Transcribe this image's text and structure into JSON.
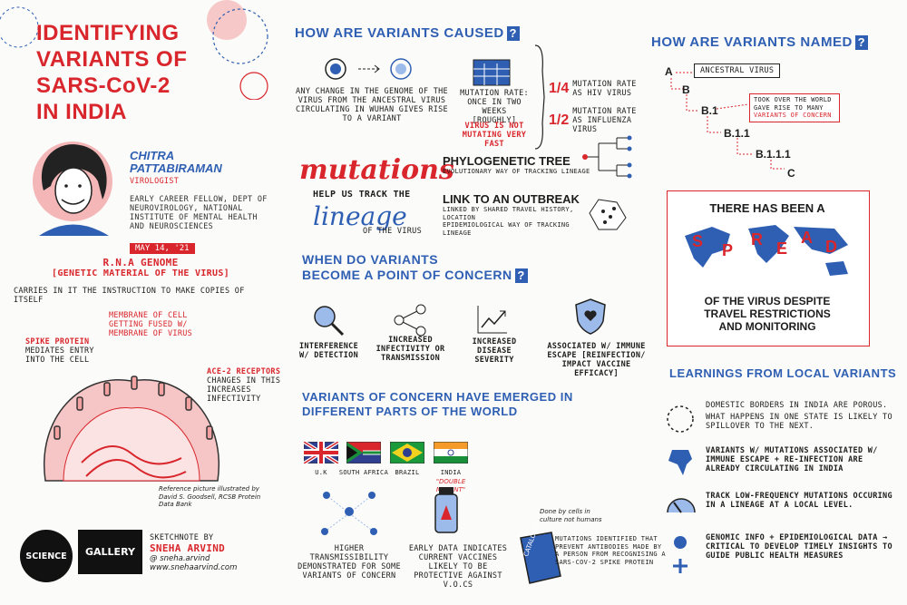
{
  "title_lines": [
    "IDENTIFYING",
    "VARIANTS OF",
    "SARS-CoV-2",
    "IN INDIA"
  ],
  "speaker": {
    "name_line1": "CHITRA",
    "name_line2": "PATTABIRAMAN",
    "role": "VIROLOGIST",
    "affiliation": "EARLY CAREER FELLOW, DEPT OF NEUROVIROLOGY, NATIONAL INSTITUTE OF MENTAL HEALTH AND NEUROSCIENCES",
    "date": "MAY 14, '21"
  },
  "rna": {
    "heading": "R.N.A GENOME",
    "subheading": "[GENETIC MATERIAL OF THE VIRUS]",
    "desc": "CARRIES IN IT THE INSTRUCTION TO MAKE COPIES OF ITSELF",
    "spike_title": "SPIKE PROTEIN",
    "spike_desc": "MEDIATES ENTRY INTO THE CELL",
    "membrane": "MEMBRANE OF CELL GETTING FUSED W/ MEMBRANE OF VIRUS",
    "ace2_title": "ACE-2 RECEPTORS",
    "ace2_desc": "CHANGES IN THIS INCREASES INFECTIVITY",
    "reference": "Reference picture illustrated by David S. Goodsell, RCSB Protein Data Bank"
  },
  "logo": {
    "circle": "SCIENCE",
    "box": "GALLERY"
  },
  "credit": {
    "label": "SKETCHNOTE BY",
    "name": "SNEHA ARVIND",
    "handle": "@ sneha.arvind",
    "site": "www.snehaarvind.com"
  },
  "caused": {
    "heading": "HOW ARE VARIANTS CAUSED",
    "change": "ANY CHANGE IN THE GENOME OF THE VIRUS FROM THE ANCESTRAL VIRUS CIRCULATING IN WUHAN GIVES RISE TO A VARIANT",
    "rate_title": "MUTATION RATE: ONCE IN TWO WEEKS",
    "rate_note": "[ROUGHLY]",
    "not_mutating": "VIRUS IS NOT MUTATING VERY FAST",
    "frac1": "1/4",
    "frac1_text": "MUTATION RATE AS HIV VIRUS",
    "frac2": "1/2",
    "frac2_text": "MUTATION RATE AS INFLUENZA VIRUS"
  },
  "mutations": {
    "word1": "mutations",
    "help": "HELP US TRACK THE",
    "word2": "lineage",
    "of_virus": "OF THE VIRUS",
    "tree_title": "PHYLOGENETIC TREE",
    "tree_desc": "EVOLUTIONARY WAY OF TRACKING LINEAGE",
    "link_title": "LINK TO AN OUTBREAK",
    "link_desc": "LINKED BY SHARED TRAVEL HISTORY, LOCATION",
    "link_desc2": "EPIDEMIOLOGICAL WAY OF TRACKING LINEAGE"
  },
  "concern": {
    "heading1": "WHEN DO VARIANTS",
    "heading2": "BECOME A POINT OF CONCERN",
    "items": [
      {
        "label": "INTERFERENCE W/ DETECTION"
      },
      {
        "label": "INCREASED INFECTIVITY OR TRANSMISSION"
      },
      {
        "label": "INCREASED DISEASE SEVERITY"
      },
      {
        "label": "ASSOCIATED W/ IMMUNE ESCAPE [REINFECTION/ IMPACT VACCINE EFFICACY]"
      }
    ]
  },
  "emerged": {
    "heading1": "VARIANTS OF CONCERN HAVE EMERGED IN",
    "heading2": "DIFFERENT PARTS OF THE WORLD",
    "flags": [
      "U.K",
      "SOUTH AFRICA",
      "BRAZIL",
      "INDIA"
    ],
    "double_mutant": "\"DOUBLE MUTANT\"",
    "higher": "HIGHER TRANSMISSIBILITY DEMONSTRATED FOR SOME VARIANTS OF CONCERN",
    "early": "EARLY DATA INDICATES CURRENT VACCINES likely TO BE PROTECTIVE AGAINST V.O.Cs",
    "done_by": "Done by cells in culture not humans",
    "catalogue": "CATALOGUE",
    "mutations_identified": "MUTATIONS IDENTIFIED THAT PREVENT ANTIBODIES MADE BY A PERSON FROM RECOGNISING A SARS-CoV-2 SPIKE PROTEIN"
  },
  "named": {
    "heading": "HOW ARE VARIANTS NAMED",
    "a": "A",
    "ancestral": "ANCESTRAL VIRUS",
    "b": "B",
    "b1": "B.1",
    "took": "TOOK OVER THE WORLD",
    "gave": "GAVE RISE TO MANY",
    "voc": "VARIANTS OF CONCERN",
    "b11": "B.1.1",
    "b111": "B.1.1.1",
    "c": "C"
  },
  "spread": {
    "top": "THERE HAS BEEN A",
    "letters": [
      "S",
      "P",
      "R",
      "E",
      "A",
      "D"
    ],
    "bottom1": "OF THE VIRUS DESPITE",
    "bottom2": "TRAVEL RESTRICTIONS",
    "bottom3": "AND MONITORING"
  },
  "learnings": {
    "heading": "LEARNINGS FROM LOCAL VARIANTS",
    "l1a": "DOMESTIC BORDERS IN INDIA ARE POROUS.",
    "l1b": "WHAT HAPPENS IN ONE STATE IS LIKELY TO SPILLOVER TO THE NEXT.",
    "l2": "VARIANTS W/ MUTATIONS ASSOCIATED W/ IMMUNE ESCAPE + RE-INFECTION ARE ALREADY CIRCULATING IN INDIA",
    "l3": "TRACK LOW-FREQUENCY MUTATIONS OCCURING IN A LINEAGE AT A LOCAL LEVEL.",
    "l4": "GENOMIC INFO + EPIDEMIOLOGICAL DATA → CRITICAL TO DEVELOP TIMELY INSIGHTS TO GUIDE PUBLIC HEALTH MEASURES"
  }
}
